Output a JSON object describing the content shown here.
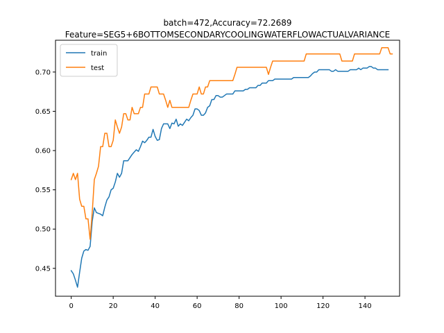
{
  "chart_data": {
    "type": "line",
    "title_line1": "batch=472,Accuracy=72.2689",
    "title_line2": "Feature=SEG5+6BOTTOMSECONDARYCOOLINGWATERFLOWACTUALVARIANCE",
    "xlabel": "",
    "ylabel": "",
    "xlim": [
      -7.5,
      156.5
    ],
    "ylim": [
      0.4145,
      0.7405
    ],
    "xticks": [
      0,
      20,
      40,
      60,
      80,
      100,
      120,
      140
    ],
    "yticks": [
      0.45,
      0.5,
      0.55,
      0.6,
      0.65,
      0.7
    ],
    "ytick_labels": [
      "0.45",
      "0.50",
      "0.55",
      "0.60",
      "0.65",
      "0.70"
    ],
    "grid": false,
    "legend_position": "top-left",
    "series": [
      {
        "name": "train",
        "color": "#1f77b4",
        "values": [
          0.447,
          0.443,
          0.435,
          0.426,
          0.445,
          0.463,
          0.472,
          0.474,
          0.473,
          0.478,
          0.51,
          0.527,
          0.521,
          0.52,
          0.519,
          0.517,
          0.528,
          0.537,
          0.541,
          0.55,
          0.552,
          0.56,
          0.571,
          0.566,
          0.571,
          0.587,
          0.587,
          0.587,
          0.591,
          0.595,
          0.598,
          0.601,
          0.599,
          0.605,
          0.612,
          0.61,
          0.613,
          0.617,
          0.617,
          0.627,
          0.618,
          0.613,
          0.614,
          0.628,
          0.634,
          0.634,
          0.634,
          0.628,
          0.635,
          0.634,
          0.64,
          0.631,
          0.634,
          0.632,
          0.636,
          0.64,
          0.638,
          0.642,
          0.645,
          0.653,
          0.653,
          0.651,
          0.645,
          0.645,
          0.648,
          0.655,
          0.657,
          0.665,
          0.665,
          0.67,
          0.67,
          0.668,
          0.668,
          0.67,
          0.672,
          0.672,
          0.672,
          0.672,
          0.676,
          0.676,
          0.676,
          0.676,
          0.676,
          0.678,
          0.678,
          0.68,
          0.68,
          0.68,
          0.68,
          0.683,
          0.683,
          0.686,
          0.686,
          0.686,
          0.689,
          0.689,
          0.689,
          0.691,
          0.691,
          0.691,
          0.691,
          0.691,
          0.691,
          0.691,
          0.691,
          0.691,
          0.693,
          0.693,
          0.693,
          0.693,
          0.693,
          0.693,
          0.693,
          0.693,
          0.695,
          0.698,
          0.7,
          0.7,
          0.703,
          0.703,
          0.703,
          0.703,
          0.703,
          0.703,
          0.701,
          0.701,
          0.703,
          0.701,
          0.701,
          0.701,
          0.701,
          0.701,
          0.701,
          0.703,
          0.703,
          0.703,
          0.703,
          0.705,
          0.703,
          0.705,
          0.705,
          0.705,
          0.707,
          0.707,
          0.705,
          0.705,
          0.703,
          0.703,
          0.703,
          0.703,
          0.703,
          0.703
        ]
      },
      {
        "name": "test",
        "color": "#ff7f0e",
        "values": [
          0.563,
          0.571,
          0.563,
          0.571,
          0.538,
          0.529,
          0.529,
          0.513,
          0.513,
          0.487,
          0.521,
          0.563,
          0.571,
          0.58,
          0.605,
          0.605,
          0.622,
          0.622,
          0.605,
          0.605,
          0.613,
          0.639,
          0.63,
          0.622,
          0.63,
          0.647,
          0.647,
          0.639,
          0.639,
          0.655,
          0.647,
          0.647,
          0.647,
          0.655,
          0.655,
          0.672,
          0.672,
          0.672,
          0.681,
          0.681,
          0.681,
          0.681,
          0.672,
          0.672,
          0.672,
          0.664,
          0.655,
          0.664,
          0.655,
          0.655,
          0.655,
          0.655,
          0.655,
          0.655,
          0.655,
          0.655,
          0.655,
          0.664,
          0.672,
          0.672,
          0.672,
          0.681,
          0.672,
          0.672,
          0.681,
          0.681,
          0.689,
          0.689,
          0.689,
          0.689,
          0.689,
          0.689,
          0.689,
          0.689,
          0.689,
          0.689,
          0.689,
          0.689,
          0.697,
          0.706,
          0.706,
          0.706,
          0.706,
          0.706,
          0.706,
          0.706,
          0.706,
          0.706,
          0.706,
          0.706,
          0.706,
          0.706,
          0.706,
          0.706,
          0.697,
          0.706,
          0.714,
          0.714,
          0.714,
          0.714,
          0.714,
          0.714,
          0.714,
          0.714,
          0.714,
          0.714,
          0.714,
          0.714,
          0.714,
          0.714,
          0.714,
          0.714,
          0.723,
          0.723,
          0.723,
          0.723,
          0.723,
          0.723,
          0.723,
          0.723,
          0.723,
          0.723,
          0.723,
          0.723,
          0.723,
          0.723,
          0.723,
          0.723,
          0.723,
          0.714,
          0.714,
          0.714,
          0.714,
          0.714,
          0.714,
          0.723,
          0.723,
          0.723,
          0.723,
          0.723,
          0.723,
          0.723,
          0.723,
          0.723,
          0.723,
          0.723,
          0.723,
          0.723,
          0.731,
          0.731,
          0.731,
          0.731,
          0.723,
          0.723
        ]
      }
    ]
  }
}
